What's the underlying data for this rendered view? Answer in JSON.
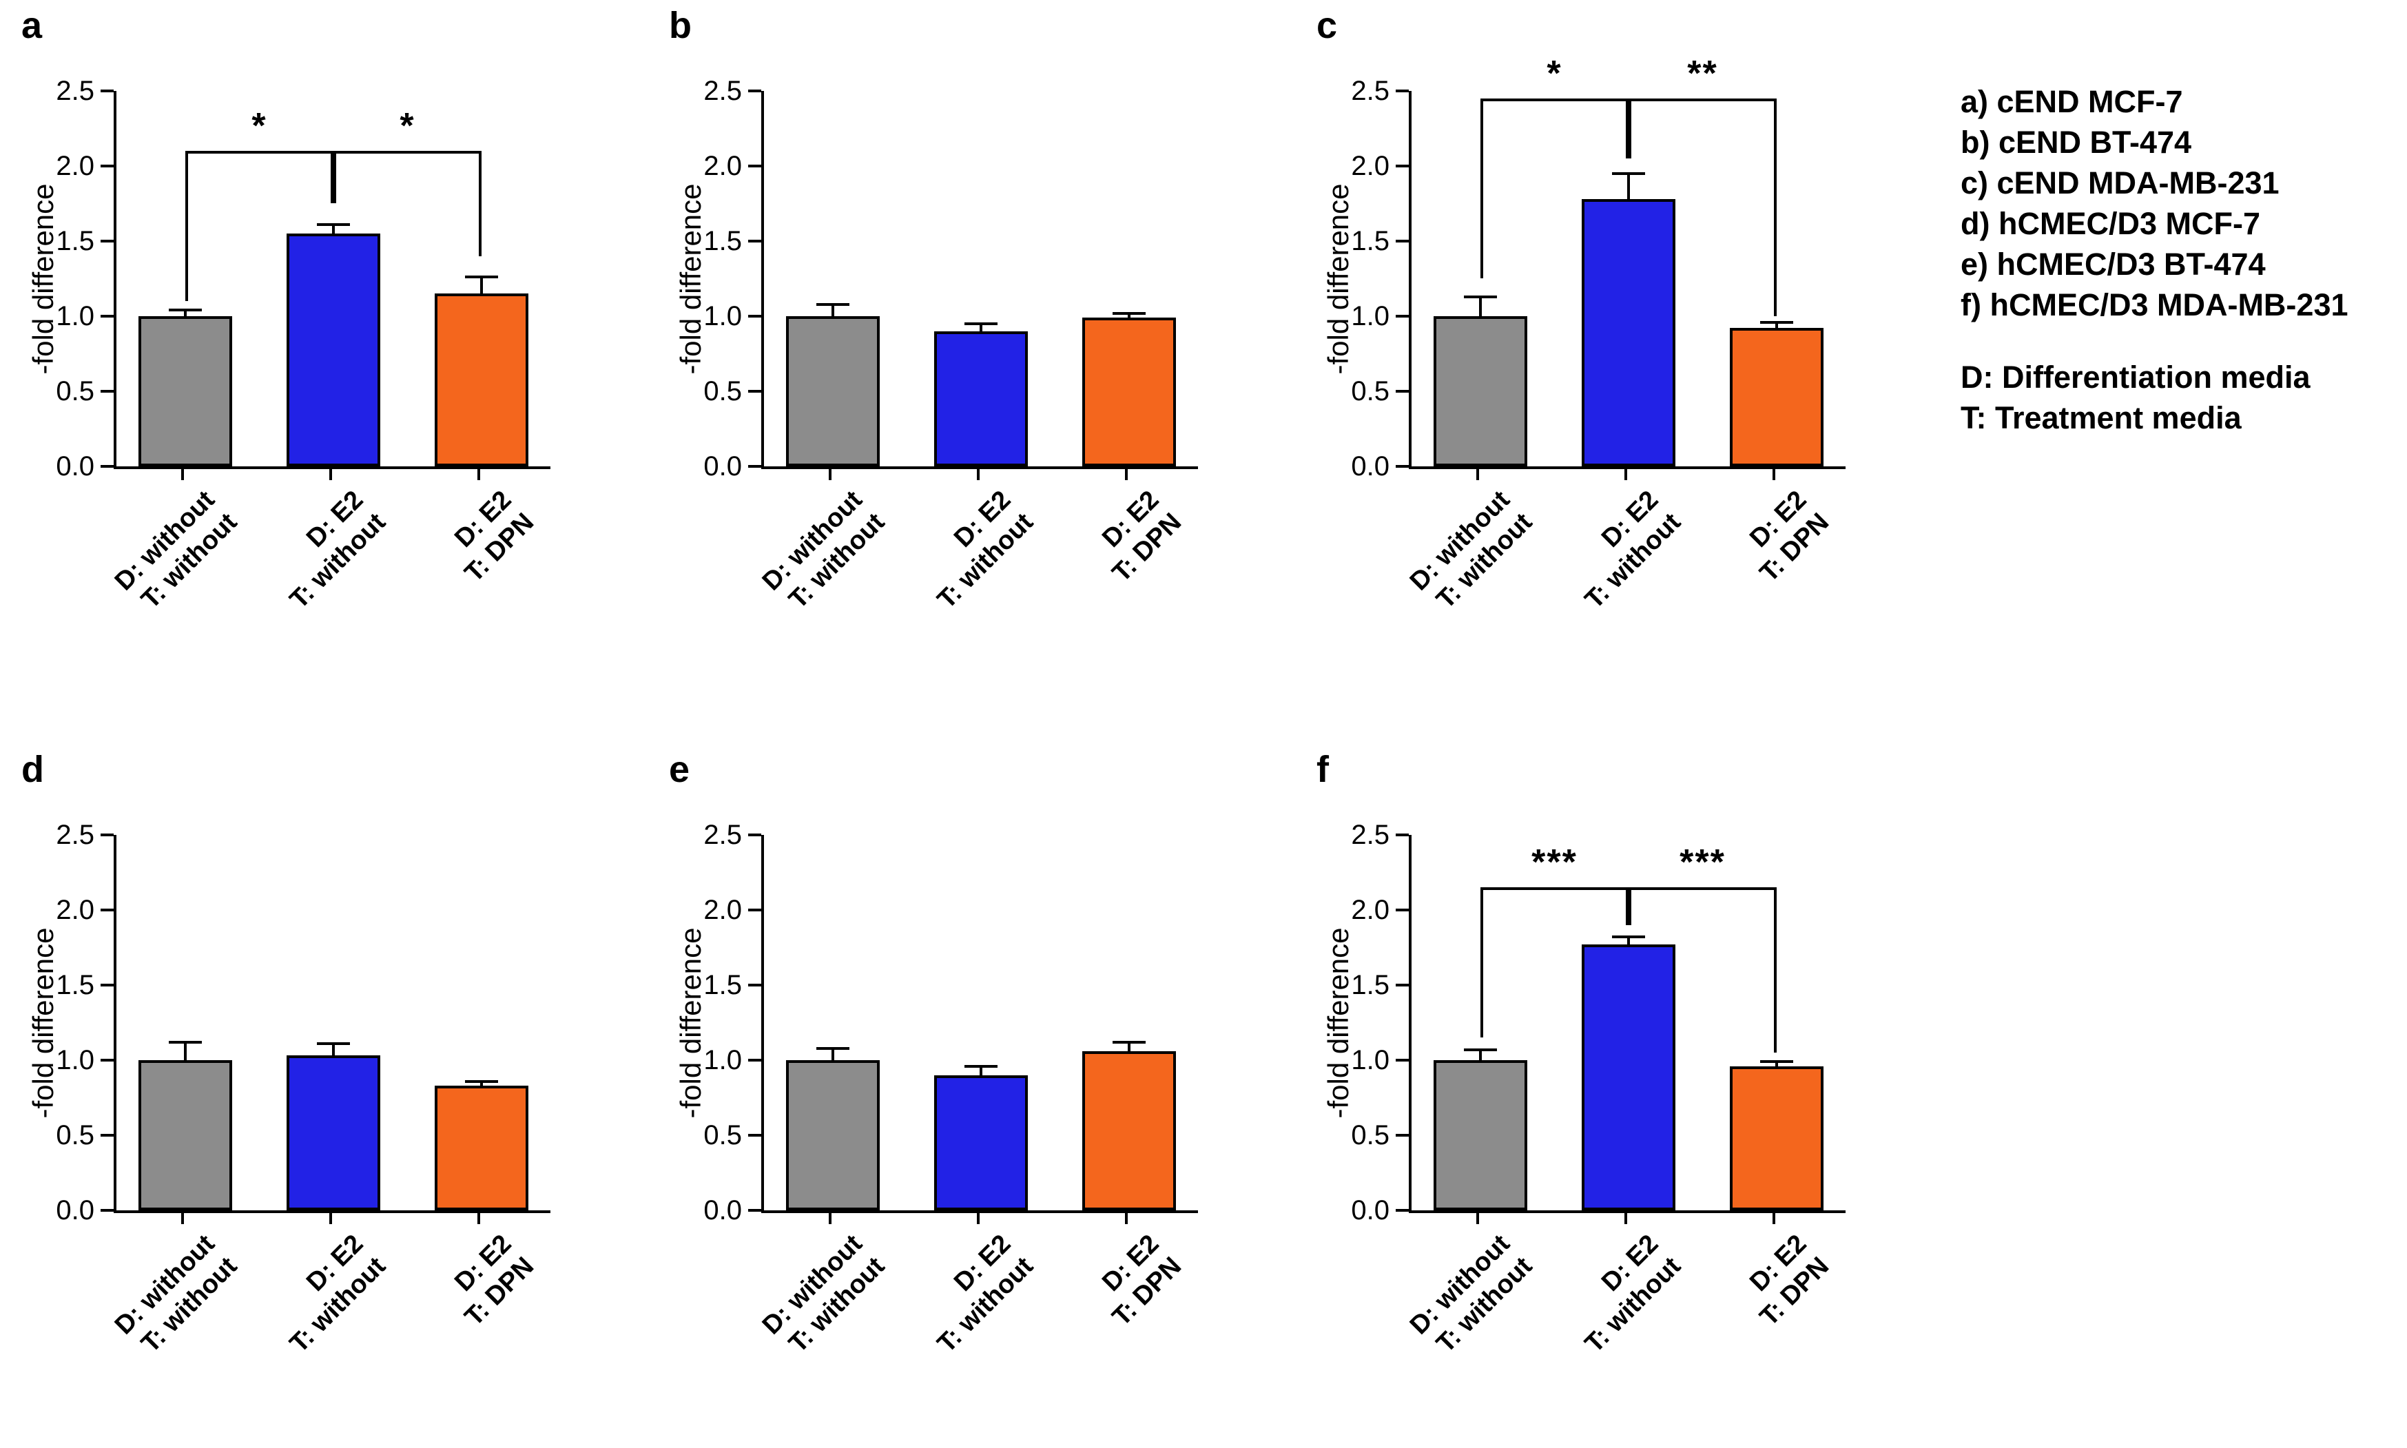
{
  "figure": {
    "background": "#ffffff",
    "ylabel": "-fold difference",
    "ylim": [
      0,
      2.5
    ],
    "ytick_step": 0.5,
    "yticks": [
      "0.0",
      "0.5",
      "1.0",
      "1.5",
      "2.0",
      "2.5"
    ],
    "categories": [
      {
        "line1": "D: without",
        "line2": "T: without"
      },
      {
        "line1": "D: E2",
        "line2": "T: without"
      },
      {
        "line1": "D: E2",
        "line2": "T: DPN"
      }
    ],
    "bar_colors": [
      "#8c8c8c",
      "#2222e6",
      "#f4661d"
    ],
    "axis_color": "#000000",
    "error_bar_color": "#000000"
  },
  "chart_data": [
    {
      "type": "bar",
      "panel": "a",
      "name": "cEND MCF-7",
      "ylabel": "-fold difference",
      "ylim": [
        0,
        2.5
      ],
      "categories": [
        "D: without / T: without",
        "D: E2 / T: without",
        "D: E2 / T: DPN"
      ],
      "values": [
        1.0,
        1.55,
        1.15
      ],
      "errors": [
        0.04,
        0.06,
        0.11
      ],
      "significance": [
        {
          "from": 0,
          "to": 1,
          "label": "*",
          "y": 2.1,
          "end_from": 1.1,
          "end_to": 1.75
        },
        {
          "from": 1,
          "to": 2,
          "label": "*",
          "y": 2.1,
          "end_from": 1.75,
          "end_to": 1.4
        }
      ]
    },
    {
      "type": "bar",
      "panel": "b",
      "name": "cEND BT-474",
      "ylabel": "-fold difference",
      "ylim": [
        0,
        2.5
      ],
      "categories": [
        "D: without / T: without",
        "D: E2 / T: without",
        "D: E2 / T: DPN"
      ],
      "values": [
        1.0,
        0.9,
        0.99
      ],
      "errors": [
        0.08,
        0.05,
        0.03
      ],
      "significance": []
    },
    {
      "type": "bar",
      "panel": "c",
      "name": "cEND MDA-MB-231",
      "ylabel": "-fold difference",
      "ylim": [
        0,
        2.5
      ],
      "categories": [
        "D: without / T: without",
        "D: E2 / T: without",
        "D: E2 / T: DPN"
      ],
      "values": [
        1.0,
        1.78,
        0.92
      ],
      "errors": [
        0.13,
        0.17,
        0.04
      ],
      "significance": [
        {
          "from": 0,
          "to": 1,
          "label": "*",
          "y": 2.45,
          "end_from": 1.25,
          "end_to": 2.05
        },
        {
          "from": 1,
          "to": 2,
          "label": "**",
          "y": 2.45,
          "end_from": 2.05,
          "end_to": 1.0
        }
      ]
    },
    {
      "type": "bar",
      "panel": "d",
      "name": "hCMEC/D3 MCF-7",
      "ylabel": "-fold difference",
      "ylim": [
        0,
        2.5
      ],
      "categories": [
        "D: without / T: without",
        "D: E2 / T: without",
        "D: E2 / T: DPN"
      ],
      "values": [
        1.0,
        1.03,
        0.83
      ],
      "errors": [
        0.12,
        0.08,
        0.03
      ],
      "significance": []
    },
    {
      "type": "bar",
      "panel": "e",
      "name": "hCMEC/D3 BT-474",
      "ylabel": "-fold difference",
      "ylim": [
        0,
        2.5
      ],
      "categories": [
        "D: without / T: without",
        "D: E2 / T: without",
        "D: E2 / T: DPN"
      ],
      "values": [
        1.0,
        0.9,
        1.06
      ],
      "errors": [
        0.08,
        0.06,
        0.06
      ],
      "significance": []
    },
    {
      "type": "bar",
      "panel": "f",
      "name": "hCMEC/D3 MDA-MB-231",
      "ylabel": "-fold difference",
      "ylim": [
        0,
        2.5
      ],
      "categories": [
        "D: without / T: without",
        "D: E2 / T: without",
        "D: E2 / T: DPN"
      ],
      "values": [
        1.0,
        1.77,
        0.96
      ],
      "errors": [
        0.07,
        0.05,
        0.03
      ],
      "significance": [
        {
          "from": 0,
          "to": 1,
          "label": "***",
          "y": 2.15,
          "end_from": 1.15,
          "end_to": 1.9
        },
        {
          "from": 1,
          "to": 2,
          "label": "***",
          "y": 2.15,
          "end_from": 1.9,
          "end_to": 1.05
        }
      ]
    }
  ],
  "legend": {
    "panel_labels": [
      "a) cEND MCF-7",
      "b) cEND BT-474",
      "c) cEND MDA-MB-231",
      "d) hCMEC/D3 MCF-7",
      "e) hCMEC/D3 BT-474",
      "f) hCMEC/D3 MDA-MB-231"
    ],
    "media_labels": [
      "D: Differentiation media",
      "T: Treatment media"
    ]
  }
}
